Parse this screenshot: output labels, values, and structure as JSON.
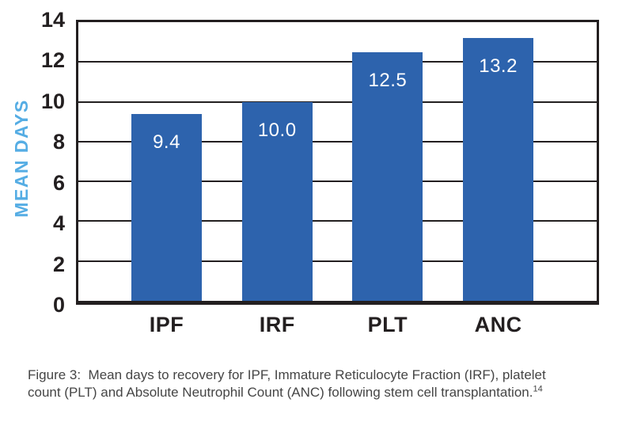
{
  "chart_data": {
    "type": "bar",
    "categories": [
      "IPF",
      "IRF",
      "PLT",
      "ANC"
    ],
    "values": [
      9.4,
      10.0,
      12.5,
      13.2
    ],
    "value_labels": [
      "9.4",
      "10.0",
      "12.5",
      "13.2"
    ],
    "title": "",
    "xlabel": "",
    "ylabel": "MEAN DAYS",
    "ylim": [
      0,
      14
    ],
    "yticks": [
      0,
      2,
      4,
      6,
      8,
      10,
      12,
      14
    ],
    "grid": "horizontal",
    "legend": "none",
    "bar_color": "#2D63AD",
    "value_label_color": "#FFFFFF",
    "ylabel_color": "#55ADE4",
    "axis_color": "#231F20"
  },
  "caption": {
    "text": "Figure 3:  Mean days to recovery for IPF, Immature Reticulocyte Fraction (IRF), platelet count (PLT) and Absolute Neutrophil Count (ANC) following stem cell transplantation.",
    "reference": "14"
  }
}
